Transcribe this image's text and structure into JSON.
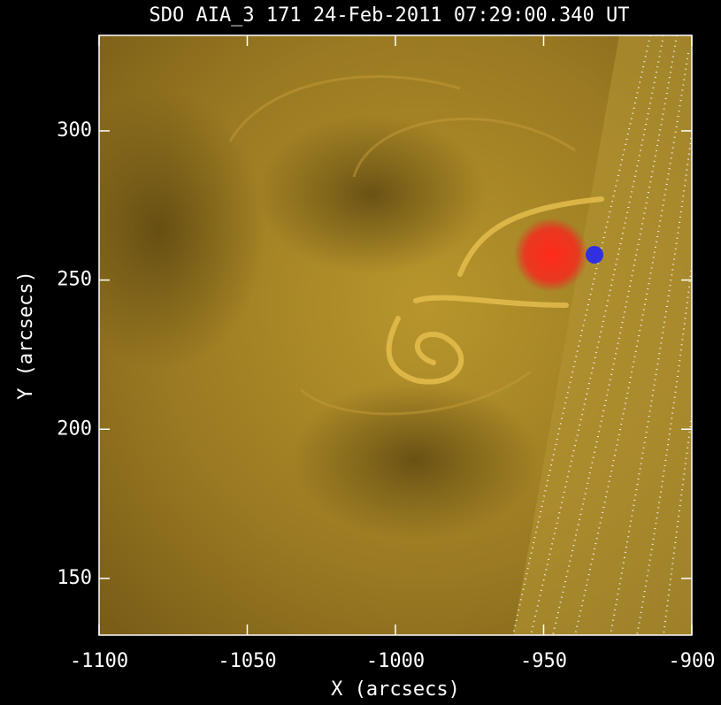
{
  "chart_data": {
    "type": "image",
    "title": "SDO AIA_3 171 24-Feb-2011 07:29:00.340 UT",
    "x_label": "X (arcsecs)",
    "y_label": "Y (arcsecs)",
    "xlim": [
      -1100,
      -900
    ],
    "xticks": [
      -1100,
      -1050,
      -1000,
      -950,
      -900
    ],
    "ylim": [
      131,
      332
    ],
    "yticks": [
      150,
      200,
      250,
      300
    ],
    "axis_color": "#ffffff"
  }
}
